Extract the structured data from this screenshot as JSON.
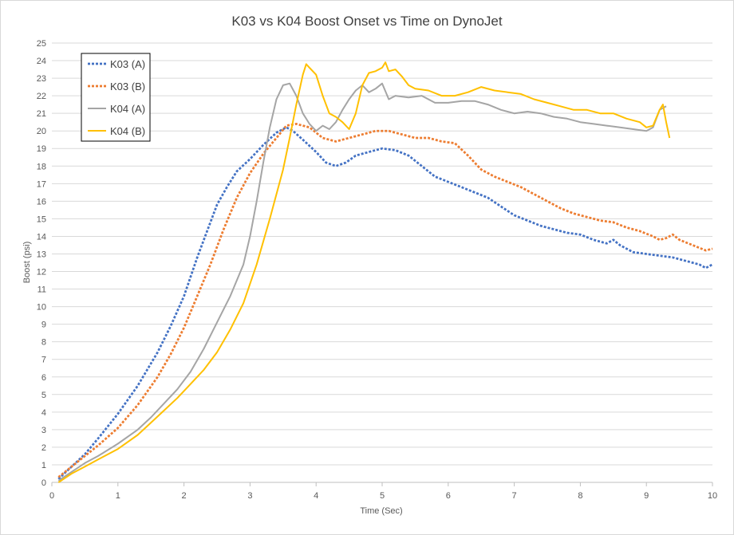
{
  "chart_data": {
    "type": "line",
    "title": "K03 vs K04 Boost Onset vs Time on DynoJet",
    "xlabel": "Time (Sec)",
    "ylabel": "Boost (psi)",
    "xlim": [
      0,
      10
    ],
    "ylim": [
      0,
      25
    ],
    "xticks": [
      0,
      1,
      2,
      3,
      4,
      5,
      6,
      7,
      8,
      9,
      10
    ],
    "yticks": [
      0,
      1,
      2,
      3,
      4,
      5,
      6,
      7,
      8,
      9,
      10,
      11,
      12,
      13,
      14,
      15,
      16,
      17,
      18,
      19,
      20,
      21,
      22,
      23,
      24,
      25
    ],
    "grid": "horizontal",
    "legend_position": "top-left",
    "series": [
      {
        "name": "K03 (A)",
        "color": "#4472C4",
        "style": "dashed",
        "x": [
          0.1,
          0.3,
          0.5,
          0.7,
          1.0,
          1.3,
          1.6,
          1.8,
          2.0,
          2.2,
          2.35,
          2.5,
          2.65,
          2.8,
          3.0,
          3.2,
          3.4,
          3.55,
          3.65,
          3.8,
          4.0,
          4.15,
          4.3,
          4.45,
          4.6,
          4.8,
          5.0,
          5.2,
          5.4,
          5.6,
          5.8,
          6.0,
          6.2,
          6.4,
          6.6,
          6.8,
          7.0,
          7.2,
          7.4,
          7.6,
          7.8,
          8.0,
          8.2,
          8.4,
          8.5,
          8.6,
          8.8,
          9.0,
          9.2,
          9.4,
          9.6,
          9.8,
          9.9,
          10.0
        ],
        "y": [
          0.2,
          0.9,
          1.6,
          2.5,
          3.9,
          5.5,
          7.4,
          8.9,
          10.6,
          12.8,
          14.3,
          15.8,
          16.8,
          17.7,
          18.4,
          19.2,
          19.9,
          20.2,
          20.0,
          19.5,
          18.8,
          18.2,
          18.0,
          18.2,
          18.6,
          18.8,
          19.0,
          18.9,
          18.6,
          18.0,
          17.4,
          17.1,
          16.8,
          16.5,
          16.2,
          15.7,
          15.2,
          14.9,
          14.6,
          14.4,
          14.2,
          14.1,
          13.8,
          13.6,
          13.8,
          13.5,
          13.1,
          13.0,
          12.9,
          12.8,
          12.6,
          12.4,
          12.2,
          12.4
        ]
      },
      {
        "name": "K03 (B)",
        "color": "#ED7D31",
        "style": "dashed",
        "x": [
          0.1,
          0.3,
          0.5,
          0.7,
          1.0,
          1.3,
          1.6,
          1.8,
          2.0,
          2.2,
          2.4,
          2.6,
          2.8,
          3.0,
          3.2,
          3.4,
          3.55,
          3.7,
          3.9,
          4.1,
          4.3,
          4.5,
          4.7,
          4.9,
          5.1,
          5.3,
          5.5,
          5.7,
          5.9,
          6.1,
          6.3,
          6.5,
          6.7,
          6.9,
          7.1,
          7.3,
          7.5,
          7.7,
          7.9,
          8.1,
          8.3,
          8.5,
          8.7,
          8.9,
          9.1,
          9.2,
          9.3,
          9.4,
          9.5,
          9.7,
          9.9,
          10.0
        ],
        "y": [
          0.3,
          0.9,
          1.5,
          2.1,
          3.1,
          4.4,
          6.0,
          7.3,
          8.8,
          10.6,
          12.4,
          14.4,
          16.2,
          17.6,
          18.7,
          19.6,
          20.3,
          20.4,
          20.2,
          19.6,
          19.4,
          19.6,
          19.8,
          20.0,
          20.0,
          19.8,
          19.6,
          19.6,
          19.4,
          19.3,
          18.6,
          17.8,
          17.4,
          17.1,
          16.8,
          16.4,
          16.0,
          15.6,
          15.3,
          15.1,
          14.9,
          14.8,
          14.5,
          14.3,
          14.0,
          13.8,
          13.9,
          14.1,
          13.8,
          13.5,
          13.2,
          13.3
        ]
      },
      {
        "name": "K04 (A)",
        "color": "#A5A5A5",
        "style": "solid",
        "x": [
          0.1,
          0.3,
          0.5,
          0.7,
          1.0,
          1.3,
          1.5,
          1.7,
          1.9,
          2.1,
          2.3,
          2.5,
          2.7,
          2.9,
          3.0,
          3.1,
          3.2,
          3.3,
          3.4,
          3.5,
          3.6,
          3.7,
          3.8,
          3.9,
          4.0,
          4.1,
          4.2,
          4.3,
          4.4,
          4.5,
          4.6,
          4.7,
          4.8,
          4.9,
          5.0,
          5.1,
          5.2,
          5.4,
          5.6,
          5.8,
          6.0,
          6.2,
          6.4,
          6.6,
          6.8,
          7.0,
          7.2,
          7.4,
          7.6,
          7.8,
          8.0,
          8.2,
          8.4,
          8.6,
          8.8,
          9.0,
          9.1,
          9.2,
          9.3
        ],
        "y": [
          0.1,
          0.6,
          1.1,
          1.5,
          2.2,
          3.0,
          3.7,
          4.5,
          5.3,
          6.3,
          7.6,
          9.1,
          10.6,
          12.4,
          14.0,
          16.0,
          18.2,
          20.2,
          21.8,
          22.6,
          22.7,
          22.0,
          21.0,
          20.4,
          20.0,
          20.3,
          20.1,
          20.5,
          21.2,
          21.8,
          22.3,
          22.6,
          22.2,
          22.4,
          22.7,
          21.8,
          22.0,
          21.9,
          22.0,
          21.6,
          21.6,
          21.7,
          21.7,
          21.5,
          21.2,
          21.0,
          21.1,
          21.0,
          20.8,
          20.7,
          20.5,
          20.4,
          20.3,
          20.2,
          20.1,
          20.0,
          20.2,
          21.2,
          21.4
        ]
      },
      {
        "name": "K04 (B)",
        "color": "#FFC000",
        "style": "solid",
        "x": [
          0.1,
          0.3,
          0.5,
          0.7,
          1.0,
          1.3,
          1.5,
          1.7,
          1.9,
          2.1,
          2.3,
          2.5,
          2.7,
          2.9,
          3.1,
          3.3,
          3.5,
          3.6,
          3.7,
          3.8,
          3.85,
          3.9,
          4.0,
          4.1,
          4.2,
          4.3,
          4.4,
          4.5,
          4.6,
          4.7,
          4.8,
          4.9,
          5.0,
          5.05,
          5.1,
          5.2,
          5.3,
          5.4,
          5.5,
          5.7,
          5.9,
          6.1,
          6.3,
          6.5,
          6.7,
          6.9,
          7.1,
          7.3,
          7.5,
          7.7,
          7.9,
          8.1,
          8.3,
          8.5,
          8.7,
          8.9,
          9.0,
          9.1,
          9.2,
          9.25,
          9.3,
          9.35
        ],
        "y": [
          0.0,
          0.5,
          0.9,
          1.3,
          1.9,
          2.7,
          3.4,
          4.1,
          4.8,
          5.6,
          6.4,
          7.4,
          8.7,
          10.2,
          12.4,
          15.0,
          17.8,
          19.6,
          21.5,
          23.2,
          23.8,
          23.6,
          23.2,
          22.0,
          21.0,
          20.8,
          20.5,
          20.1,
          21.0,
          22.6,
          23.3,
          23.4,
          23.6,
          23.9,
          23.4,
          23.5,
          23.1,
          22.6,
          22.4,
          22.3,
          22.0,
          22.0,
          22.2,
          22.5,
          22.3,
          22.2,
          22.1,
          21.8,
          21.6,
          21.4,
          21.2,
          21.2,
          21.0,
          21.0,
          20.7,
          20.5,
          20.2,
          20.3,
          21.2,
          21.5,
          20.5,
          19.6
        ]
      }
    ]
  }
}
